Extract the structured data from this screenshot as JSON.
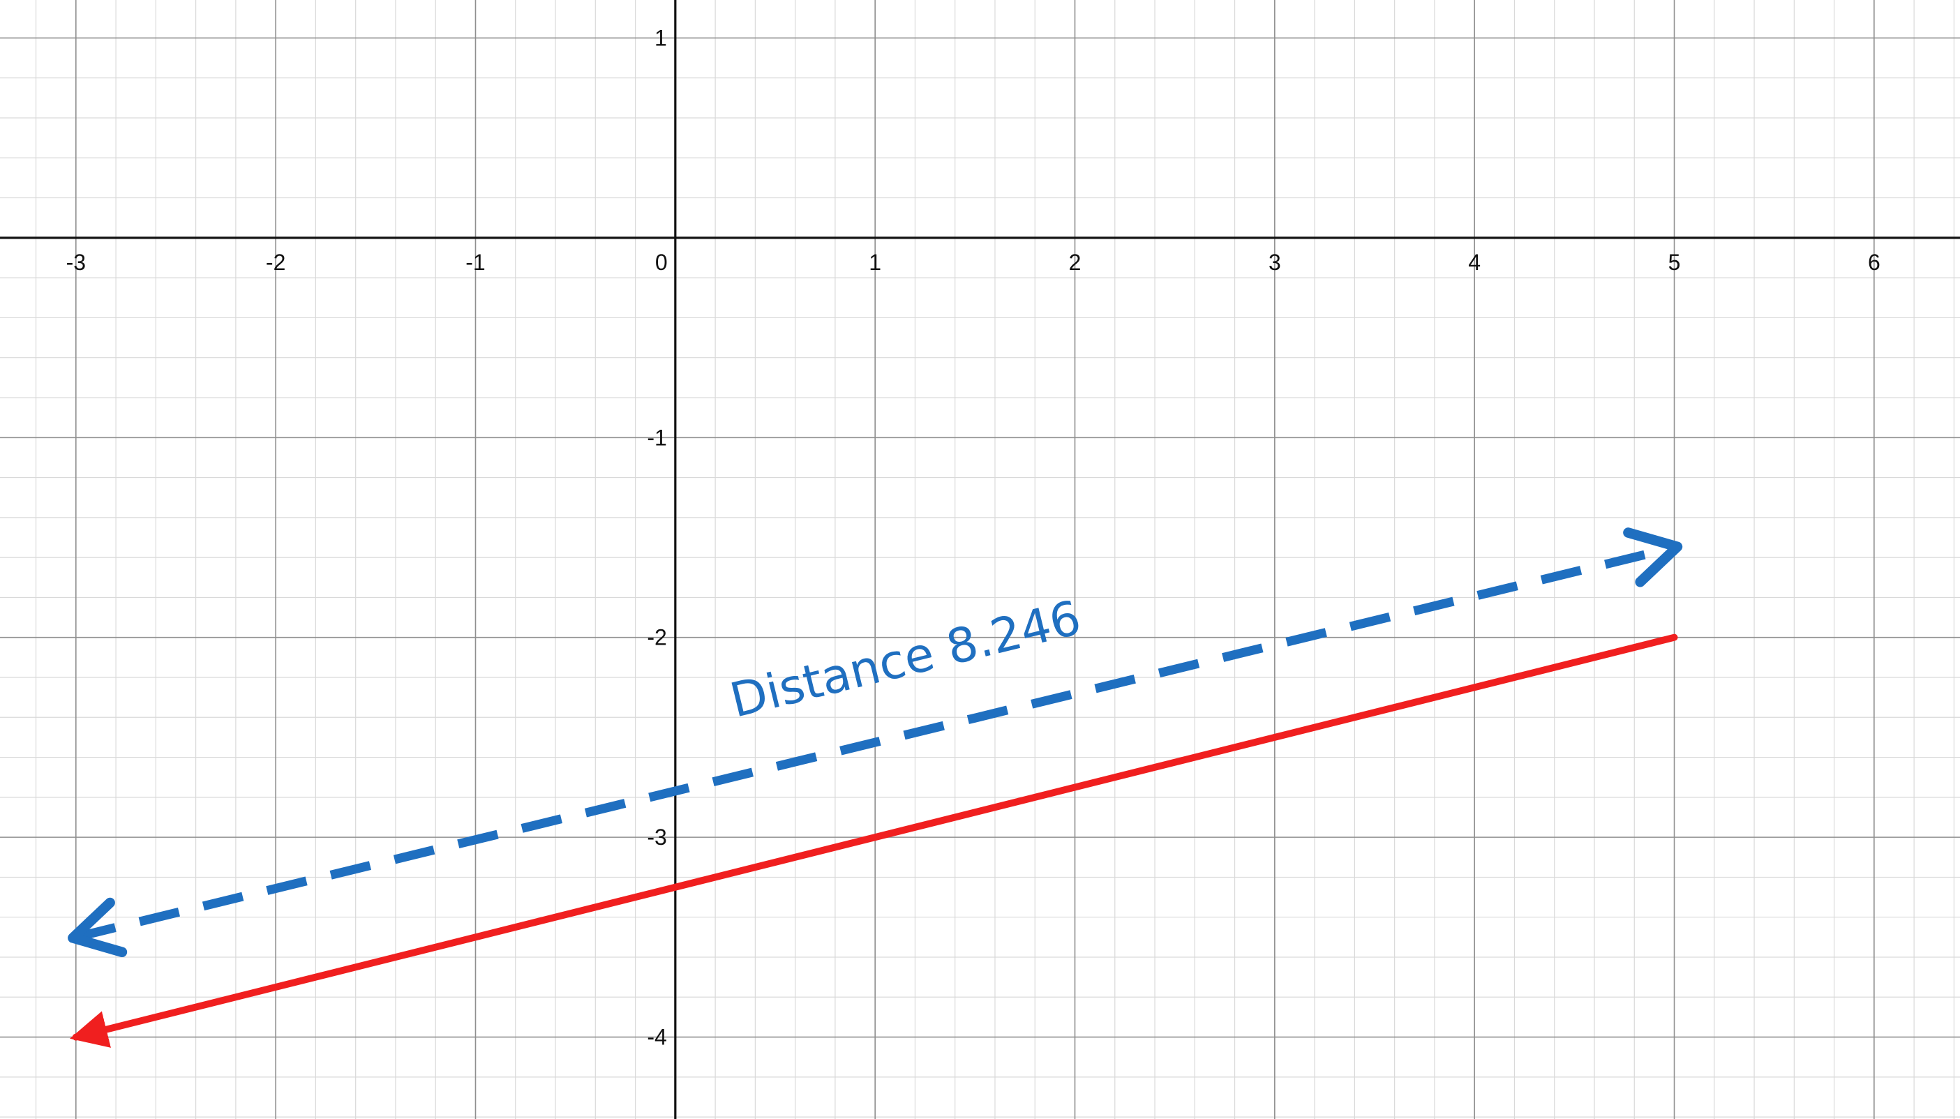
{
  "colors": {
    "background": "#ffffff",
    "minor_grid": "#d9d9d9",
    "major_grid": "#8f8f8f",
    "axis": "#111111",
    "blue": "#1f6fc0",
    "red": "#f01f1f"
  },
  "chart_data": {
    "type": "line",
    "title": "",
    "xlabel": "",
    "ylabel": "",
    "xlim": [
      -3.38,
      6.43
    ],
    "ylim": [
      -4.41,
      1.19
    ],
    "grid": true,
    "minor_grid_step": 0.2,
    "x_ticks": [
      {
        "value": -3,
        "label": "-3"
      },
      {
        "value": -2,
        "label": "-2"
      },
      {
        "value": -1,
        "label": "-1"
      },
      {
        "value": 0,
        "label": "0"
      },
      {
        "value": 1,
        "label": "1"
      },
      {
        "value": 2,
        "label": "2"
      },
      {
        "value": 3,
        "label": "3"
      },
      {
        "value": 4,
        "label": "4"
      },
      {
        "value": 5,
        "label": "5"
      },
      {
        "value": 6,
        "label": "6"
      }
    ],
    "y_ticks": [
      {
        "value": 1,
        "label": "1"
      },
      {
        "value": -1,
        "label": "-1"
      },
      {
        "value": -2,
        "label": "-2"
      },
      {
        "value": -3,
        "label": "-3"
      },
      {
        "value": -4,
        "label": "-4"
      }
    ],
    "series": [
      {
        "style": "solid",
        "color": "#f01f1f",
        "arrow": "start",
        "points": [
          {
            "x": -3,
            "y": -4
          },
          {
            "x": 5,
            "y": -2
          }
        ]
      },
      {
        "style": "dashed",
        "color": "#1f6fc0",
        "arrow": "both",
        "points": [
          {
            "x": -3,
            "y": -3.5
          },
          {
            "x": 5,
            "y": -1.55
          }
        ]
      }
    ],
    "annotations": [
      {
        "text": "Distance 8.246",
        "x": 0.3,
        "y": -2.4,
        "color": "#1f6fc0"
      }
    ]
  }
}
